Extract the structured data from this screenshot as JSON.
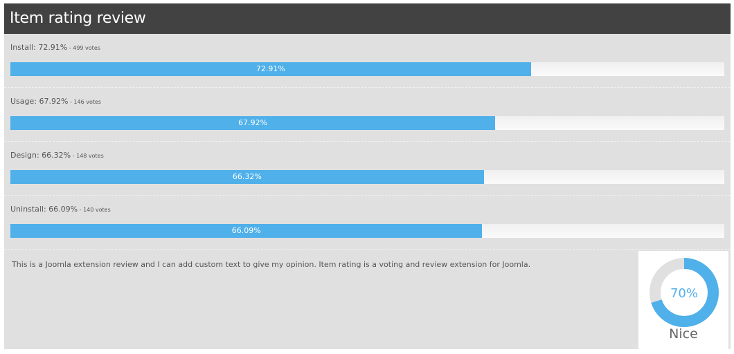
{
  "widget": {
    "title": "Item rating review"
  },
  "criteria": [
    {
      "label": "Install: 72.91%",
      "votes": " - 499 votes",
      "bar_text": "72.91%",
      "percent": 72.91
    },
    {
      "label": "Usage: 67.92%",
      "votes": " - 146 votes",
      "bar_text": "67.92%",
      "percent": 67.92
    },
    {
      "label": "Design: 66.32%",
      "votes": " - 148 votes",
      "bar_text": "66.32%",
      "percent": 66.32
    },
    {
      "label": "Uninstall: 66.09%",
      "votes": " - 140 votes",
      "bar_text": "66.09%",
      "percent": 66.09
    }
  ],
  "review": {
    "text": "This is a Joomla extension review and I can add custom text to give my opinion. Item rating is a voting and review extension for Joomla."
  },
  "score": {
    "value_text": "70%",
    "percent": 70,
    "label": "Nice"
  },
  "colors": {
    "accent": "#4fb0ea",
    "track": "#e0e0e0",
    "header": "#424242"
  }
}
